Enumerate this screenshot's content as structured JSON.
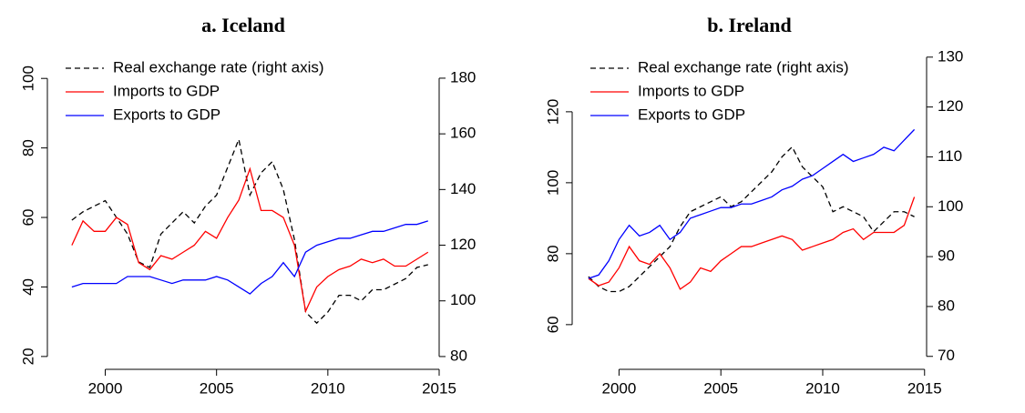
{
  "chart_data": [
    {
      "type": "line",
      "title": "a. Iceland",
      "x": [
        1998.5,
        1999,
        1999.5,
        2000,
        2000.5,
        2001,
        2001.5,
        2002,
        2002.5,
        2003,
        2003.5,
        2004,
        2004.5,
        2005,
        2005.5,
        2006,
        2006.5,
        2007,
        2007.5,
        2008,
        2008.5,
        2009,
        2009.5,
        2010,
        2010.5,
        2011,
        2011.5,
        2012,
        2012.5,
        2013,
        2013.5,
        2014,
        2014.5
      ],
      "xlim": [
        1997.4,
        2015
      ],
      "xticks": [
        2000,
        2005,
        2010,
        2015
      ],
      "ylim": [
        16.3,
        110
      ],
      "yticks": [
        20,
        40,
        60,
        80,
        100
      ],
      "y2lim": [
        75.4,
        192.4
      ],
      "y2ticks": [
        80,
        100,
        120,
        140,
        160,
        180
      ],
      "legend": "top-left",
      "series": [
        {
          "name": "Real exchange rate (right axis)",
          "color": "#000000",
          "dash": "dashed",
          "axis": "y2",
          "values": [
            129,
            132,
            134,
            136,
            130,
            124,
            114,
            112,
            124,
            128,
            132,
            128,
            134,
            138,
            148,
            158,
            138,
            146,
            150,
            140,
            122,
            96,
            92,
            96,
            102,
            102,
            100,
            104,
            104,
            106,
            108,
            112,
            113
          ]
        },
        {
          "name": "Imports to GDP",
          "color": "#ff0000",
          "values": [
            52,
            59,
            56,
            56,
            60,
            58,
            47,
            45,
            49,
            48,
            50,
            52,
            56,
            54,
            60,
            65,
            74,
            62,
            62,
            60,
            52,
            33,
            40,
            43,
            45,
            46,
            48,
            47,
            48,
            46,
            46,
            48,
            50
          ]
        },
        {
          "name": "Exports to GDP",
          "color": "#0000ff",
          "values": [
            40,
            41,
            41,
            41,
            41,
            43,
            43,
            43,
            42,
            41,
            42,
            42,
            42,
            43,
            42,
            40,
            38,
            41,
            43,
            47,
            43,
            50,
            52,
            53,
            54,
            54,
            55,
            56,
            56,
            57,
            58,
            58,
            59
          ]
        }
      ]
    },
    {
      "type": "line",
      "title": "b. Ireland",
      "x": [
        1998.5,
        1999,
        1999.5,
        2000,
        2000.5,
        2001,
        2001.5,
        2002,
        2002.5,
        2003,
        2003.5,
        2004,
        2004.5,
        2005,
        2005.5,
        2006,
        2006.5,
        2007,
        2007.5,
        2008,
        2008.5,
        2009,
        2009.5,
        2010,
        2010.5,
        2011,
        2011.5,
        2012,
        2012.5,
        2013,
        2013.5,
        2014,
        2014.5
      ],
      "xlim": [
        1997.7,
        2015.1
      ],
      "xticks": [
        2000,
        2005,
        2010,
        2015
      ],
      "ylim": [
        47.4,
        139.2
      ],
      "yticks": [
        60,
        80,
        100,
        120
      ],
      "y2lim": [
        67.4,
        132.7
      ],
      "y2ticks": [
        70,
        80,
        90,
        100,
        110,
        120,
        130
      ],
      "legend": "top-left",
      "series": [
        {
          "name": "Real exchange rate (right axis)",
          "color": "#000000",
          "dash": "dashed",
          "axis": "y2",
          "values": [
            86,
            84,
            83,
            83,
            84,
            86,
            88,
            90,
            92,
            96,
            99,
            100,
            101,
            102,
            100,
            101,
            103,
            105,
            107,
            110,
            112,
            108,
            106,
            104,
            99,
            100,
            99,
            98,
            95,
            97,
            99,
            99,
            98
          ]
        },
        {
          "name": "Imports to GDP",
          "color": "#ff0000",
          "values": [
            73,
            71,
            72,
            76,
            82,
            78,
            77,
            80,
            76,
            70,
            72,
            76,
            75,
            78,
            80,
            82,
            82,
            83,
            84,
            85,
            84,
            81,
            82,
            83,
            84,
            86,
            87,
            84,
            86,
            86,
            86,
            88,
            96
          ]
        },
        {
          "name": "Exports to GDP",
          "color": "#0000ff",
          "values": [
            73,
            74,
            78,
            84,
            88,
            85,
            86,
            88,
            84,
            86,
            90,
            91,
            92,
            93,
            93,
            94,
            94,
            95,
            96,
            98,
            99,
            101,
            102,
            104,
            106,
            108,
            106,
            107,
            108,
            110,
            109,
            112,
            115
          ]
        }
      ]
    }
  ]
}
